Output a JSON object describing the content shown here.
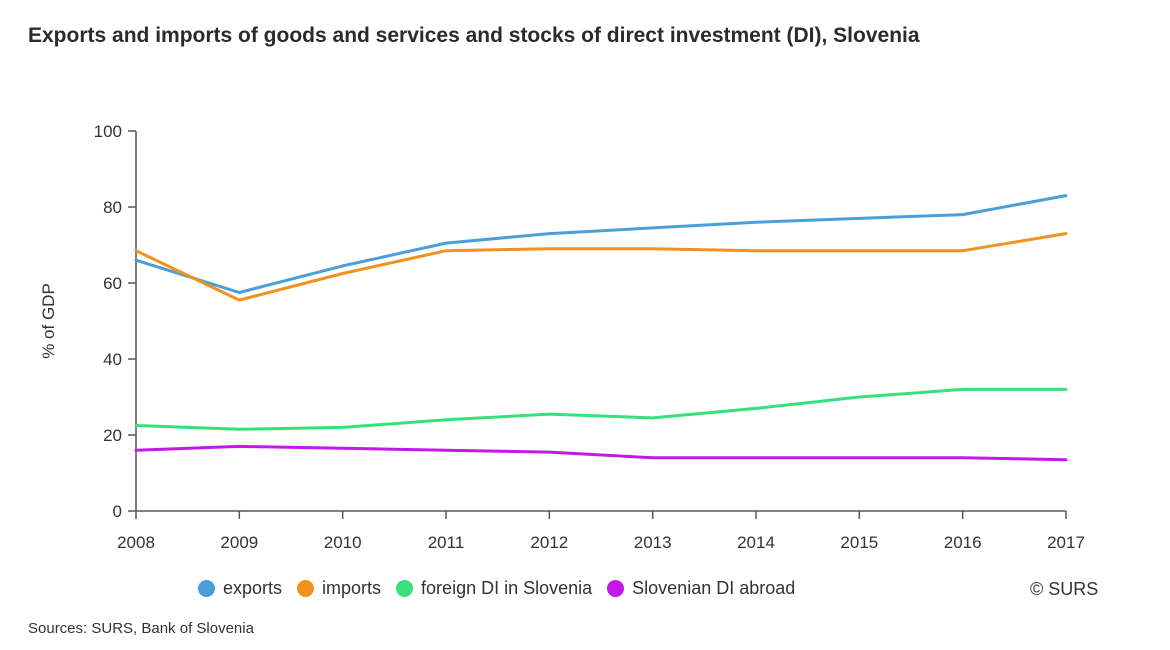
{
  "chart_data": {
    "type": "line",
    "title": "Exports and imports of goods and services and stocks of direct investment (DI), Slovenia",
    "xlabel": "",
    "ylabel": "% of GDP",
    "x": [
      "2008",
      "2009",
      "2010",
      "2011",
      "2012",
      "2013",
      "2014",
      "2015",
      "2016",
      "2017"
    ],
    "ylim": [
      0,
      100
    ],
    "yticks": [
      "0",
      "20",
      "40",
      "60",
      "80",
      "100"
    ],
    "grid": false,
    "legend_position": "bottom",
    "series": [
      {
        "name": "exports",
        "color": "#4a9fd8",
        "values": [
          66,
          57.5,
          64.5,
          70.5,
          73,
          74.5,
          76,
          77,
          78,
          83
        ]
      },
      {
        "name": "imports",
        "color": "#f0921e",
        "values": [
          68.5,
          55.5,
          62.5,
          68.5,
          69,
          69,
          68.5,
          68.5,
          68.5,
          73
        ]
      },
      {
        "name": "foreign DI in Slovenia",
        "color": "#36e07a",
        "values": [
          22.5,
          21.5,
          22,
          24,
          25.5,
          24.5,
          27,
          30,
          32,
          32
        ]
      },
      {
        "name": "Slovenian DI abroad",
        "color": "#c218e8",
        "values": [
          16,
          17,
          16.5,
          16,
          15.5,
          14,
          14,
          14,
          14,
          13.5
        ]
      }
    ]
  },
  "copyright": "© SURS",
  "sources": "Sources: SURS, Bank of Slovenia"
}
